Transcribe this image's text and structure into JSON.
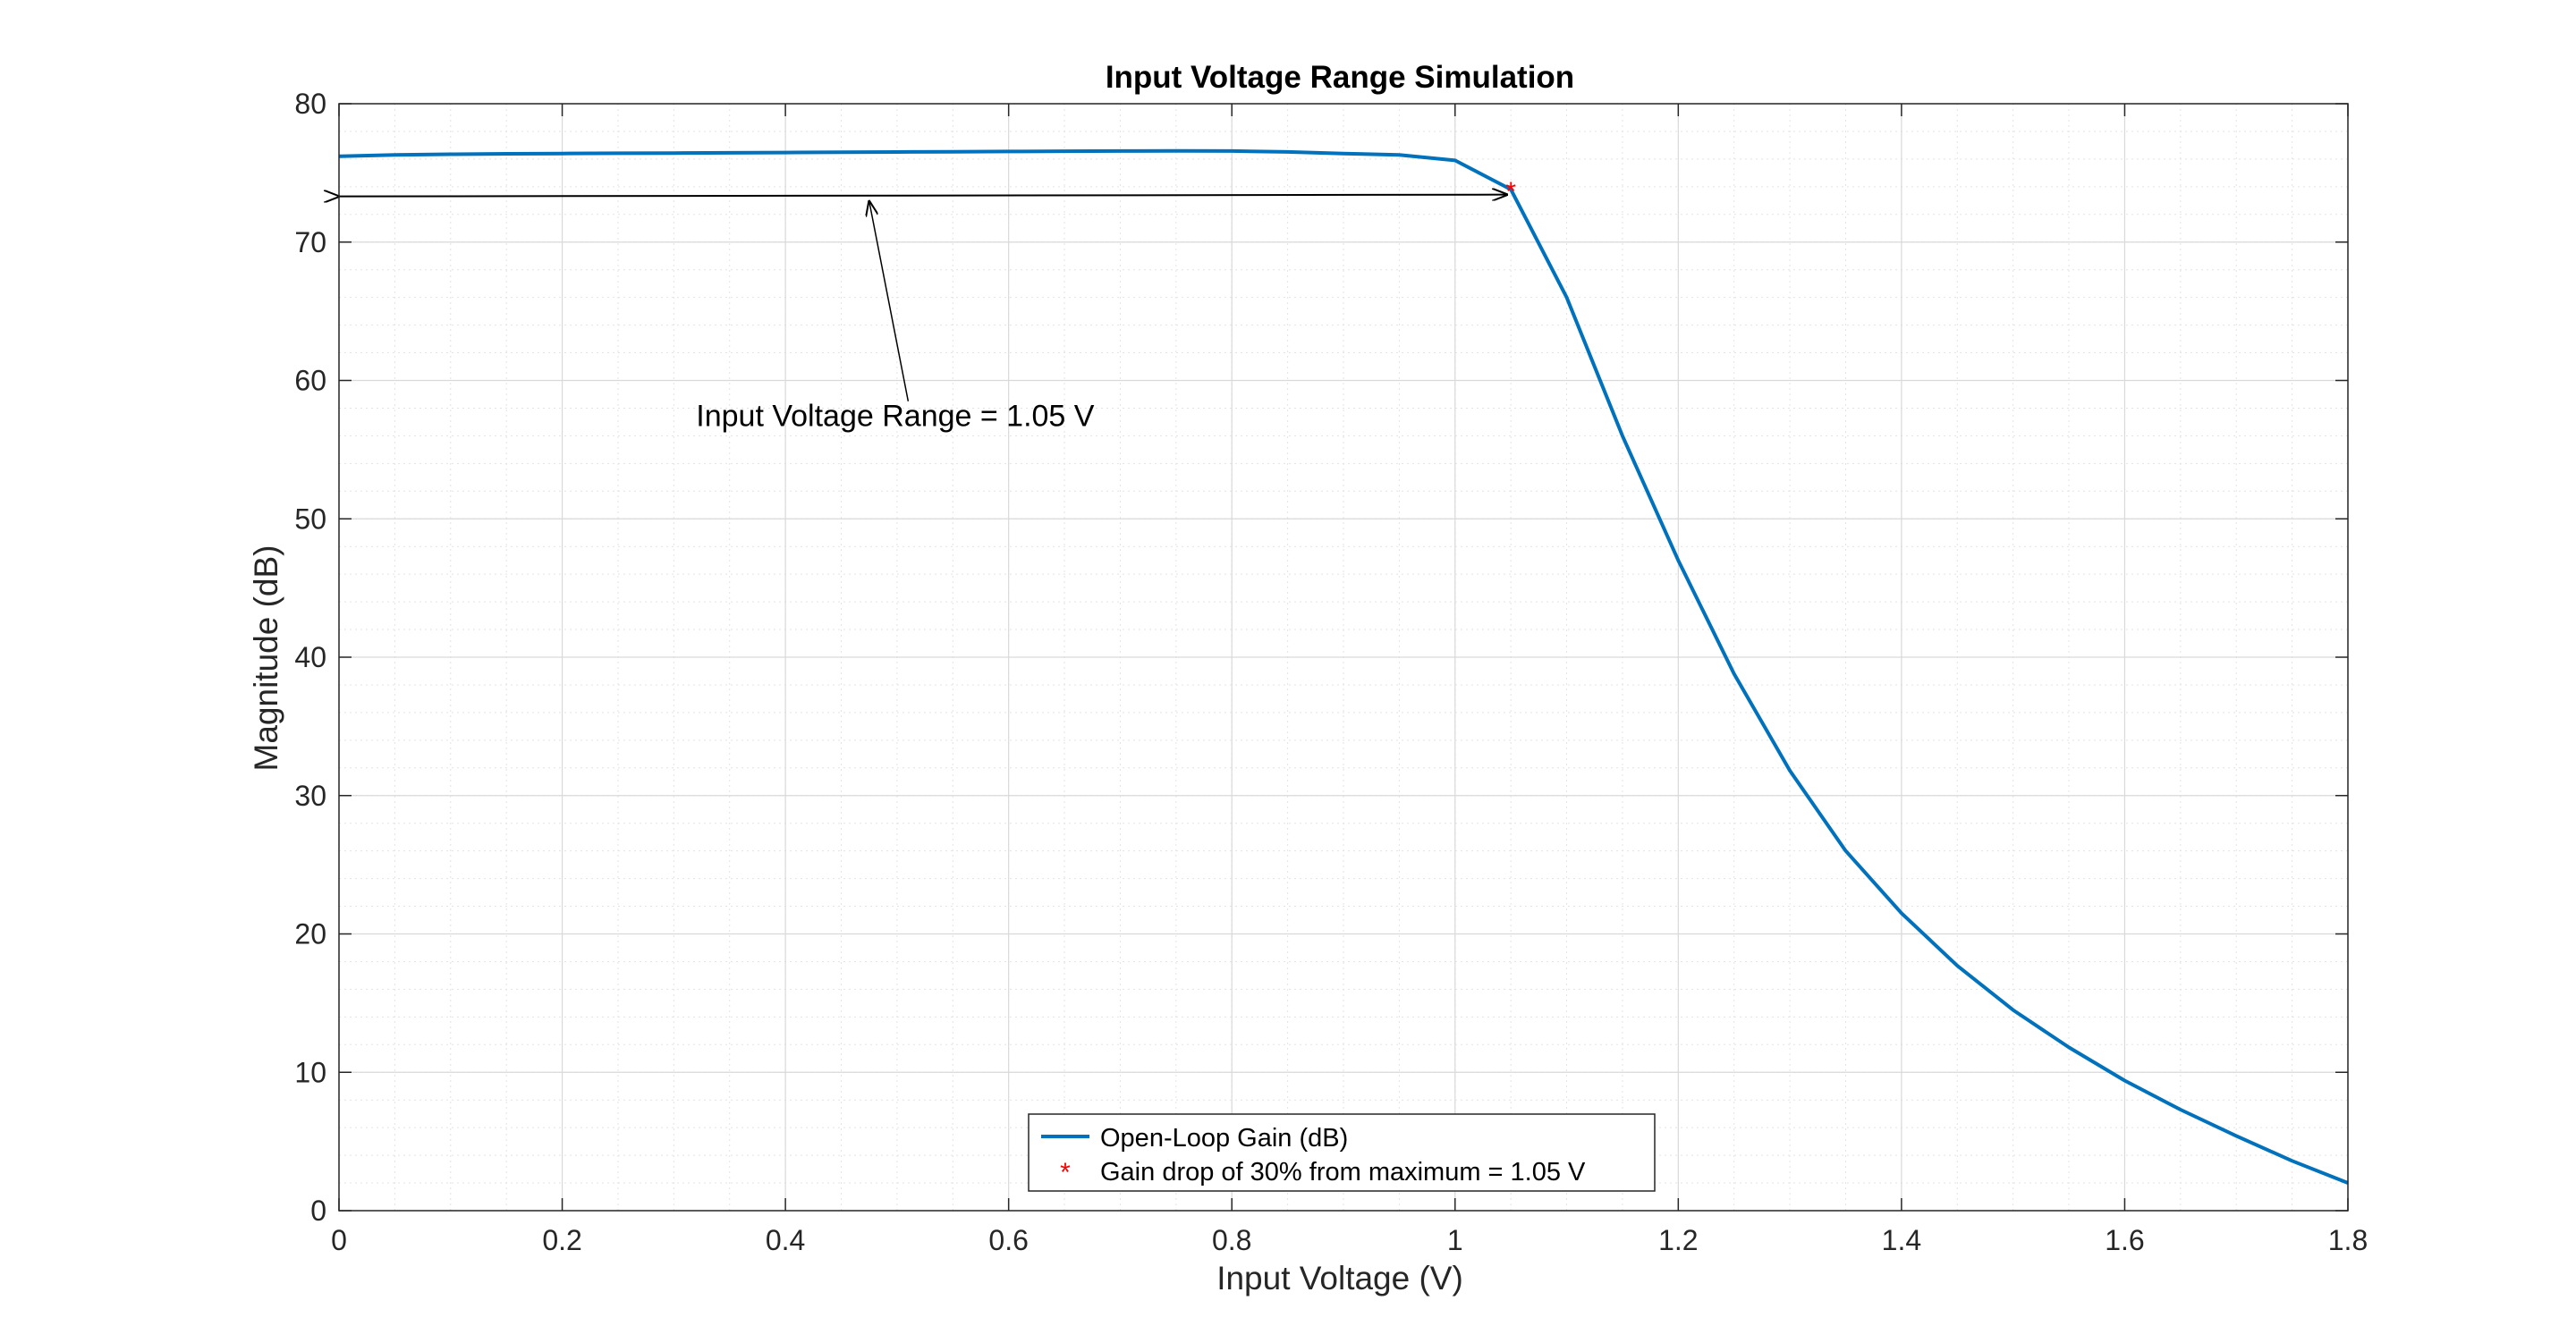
{
  "chart_data": {
    "type": "line",
    "title": "Input Voltage Range Simulation",
    "xlabel": "Input Voltage (V)",
    "ylabel": "Magnitude (dB)",
    "xlim": [
      0,
      1.8
    ],
    "ylim": [
      0,
      80
    ],
    "xticks": [
      0,
      0.2,
      0.4,
      0.6,
      0.8,
      1,
      1.2,
      1.4,
      1.6,
      1.8
    ],
    "xtick_labels": [
      "0",
      "0.2",
      "0.4",
      "0.6",
      "0.8",
      "1",
      "1.2",
      "1.4",
      "1.6",
      "1.8"
    ],
    "yticks": [
      0,
      10,
      20,
      30,
      40,
      50,
      60,
      70,
      80
    ],
    "ytick_labels": [
      "0",
      "10",
      "20",
      "30",
      "40",
      "50",
      "60",
      "70",
      "80"
    ],
    "grid": true,
    "minor_grid": true,
    "legend_position": "bottom-center",
    "series": [
      {
        "name": "Open-Loop Gain (dB)",
        "color": "#0072BD",
        "x": [
          0,
          0.05,
          0.1,
          0.15,
          0.2,
          0.25,
          0.3,
          0.35,
          0.4,
          0.45,
          0.5,
          0.55,
          0.6,
          0.65,
          0.7,
          0.75,
          0.8,
          0.85,
          0.9,
          0.95,
          1.0,
          1.05,
          1.1,
          1.15,
          1.2,
          1.25,
          1.3,
          1.35,
          1.4,
          1.45,
          1.5,
          1.55,
          1.6,
          1.65,
          1.7,
          1.75,
          1.8
        ],
        "y": [
          76.2,
          76.3,
          76.35,
          76.38,
          76.4,
          76.42,
          76.43,
          76.45,
          76.47,
          76.49,
          76.51,
          76.53,
          76.55,
          76.57,
          76.58,
          76.59,
          76.58,
          76.52,
          76.4,
          76.3,
          75.9,
          73.8,
          66.0,
          56.0,
          47.0,
          38.8,
          31.8,
          26.0,
          21.5,
          17.7,
          14.5,
          11.8,
          9.4,
          7.3,
          5.4,
          3.6,
          2.0
        ]
      },
      {
        "name": "Gain drop of 30% from maximum = 1.05 V",
        "color": "#FF0000",
        "marker": "*",
        "x": [
          1.05
        ],
        "y": [
          73.8
        ]
      }
    ],
    "annotations": [
      {
        "text": "Input Voltage Range = 1.05 V",
        "type": "double-arrow",
        "from": [
          0,
          73.3
        ],
        "to": [
          1.05,
          73.3
        ],
        "text_anchor": [
          0.32,
          56.7
        ],
        "pointer_from": [
          0.51,
          58.5
        ],
        "pointer_to": [
          0.475,
          73.1
        ]
      }
    ]
  }
}
